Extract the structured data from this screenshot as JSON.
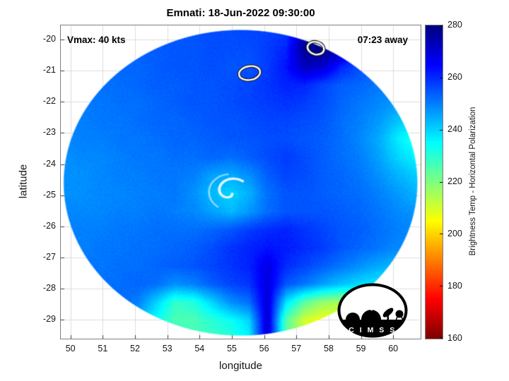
{
  "chart_data": {
    "type": "heatmap",
    "title": "Emnati: 18-Jun-2022 09:30:00",
    "xlabel": "longitude",
    "ylabel": "latitude",
    "xlim": [
      49.7,
      60.85
    ],
    "ylim": [
      -29.6,
      -19.55
    ],
    "xticks": [
      50,
      51,
      52,
      53,
      54,
      55,
      56,
      57,
      58,
      59,
      60
    ],
    "yticks": [
      -20,
      -21,
      -22,
      -23,
      -24,
      -25,
      -26,
      -27,
      -28,
      -29
    ],
    "grid": true,
    "annotations": {
      "vmax": "Vmax: 40 kts",
      "eta": "07:23 away"
    },
    "colorbar": {
      "label": "Brightness Temp - Horizontal Polarization",
      "min": 160,
      "max": 280,
      "ticks": [
        160,
        180,
        200,
        220,
        240,
        260,
        280
      ],
      "colormap": "jet"
    },
    "disk": {
      "center_lon": 55.27,
      "center_lat": -24.6,
      "rx": 5.5,
      "ry": 4.92
    },
    "swirl": {
      "lon": 54.95,
      "lat": -24.9
    },
    "contours": [
      {
        "lon": 55.55,
        "lat": -21.08,
        "rx": 0.33,
        "ry": 0.22,
        "rot": -10
      },
      {
        "lon": 57.6,
        "lat": -20.28,
        "rx": 0.26,
        "ry": 0.2,
        "rot": 15
      }
    ],
    "grid_values": {
      "extent": [
        49.8,
        60.7,
        -19.7,
        -29.6
      ],
      "values": [
        [
          252,
          252,
          252,
          253,
          253,
          254,
          254,
          255,
          256,
          256,
          257,
          257,
          258,
          274,
          279,
          277,
          262,
          256,
          254,
          253
        ],
        [
          252,
          252,
          253,
          253,
          254,
          254,
          255,
          255,
          256,
          256,
          256,
          258,
          261,
          278,
          280,
          275,
          259,
          255,
          253,
          252
        ],
        [
          251,
          252,
          252,
          253,
          253,
          254,
          255,
          255,
          256,
          255,
          255,
          258,
          263,
          273,
          271,
          261,
          256,
          253,
          252,
          251
        ],
        [
          251,
          251,
          252,
          252,
          253,
          254,
          254,
          255,
          255,
          256,
          257,
          259,
          261,
          261,
          257,
          254,
          253,
          251,
          250,
          249
        ],
        [
          250,
          251,
          251,
          252,
          252,
          253,
          254,
          255,
          255,
          256,
          257,
          258,
          259,
          258,
          256,
          253,
          251,
          249,
          247,
          245
        ],
        [
          250,
          250,
          251,
          251,
          252,
          253,
          253,
          254,
          255,
          255,
          256,
          257,
          257,
          256,
          255,
          252,
          250,
          247,
          242,
          239
        ],
        [
          249,
          250,
          250,
          251,
          251,
          252,
          253,
          253,
          254,
          255,
          255,
          256,
          256,
          255,
          254,
          252,
          249,
          245,
          237,
          232
        ],
        [
          248,
          249,
          249,
          250,
          251,
          251,
          252,
          252,
          253,
          252,
          254,
          256,
          258,
          256,
          254,
          252,
          250,
          246,
          240,
          236
        ],
        [
          248,
          248,
          249,
          250,
          250,
          251,
          251,
          250,
          246,
          245,
          248,
          254,
          257,
          256,
          254,
          253,
          251,
          248,
          244,
          241
        ],
        [
          248,
          248,
          249,
          249,
          250,
          250,
          251,
          248,
          243,
          240,
          244,
          252,
          255,
          255,
          254,
          253,
          252,
          250,
          247,
          244
        ],
        [
          249,
          249,
          249,
          250,
          250,
          251,
          250,
          249,
          246,
          243,
          247,
          252,
          255,
          255,
          255,
          254,
          253,
          251,
          249,
          247
        ],
        [
          250,
          250,
          250,
          251,
          251,
          252,
          252,
          252,
          253,
          255,
          258,
          260,
          261,
          259,
          257,
          255,
          254,
          252,
          250,
          249
        ],
        [
          250,
          250,
          251,
          251,
          252,
          252,
          253,
          254,
          256,
          259,
          261,
          263,
          262,
          260,
          258,
          255,
          253,
          251,
          249,
          248
        ],
        [
          251,
          251,
          251,
          252,
          252,
          253,
          254,
          255,
          257,
          259,
          261,
          268,
          260,
          257,
          254,
          251,
          248,
          245,
          243,
          241
        ],
        [
          251,
          251,
          252,
          252,
          253,
          252,
          248,
          250,
          254,
          257,
          259,
          269,
          255,
          251,
          246,
          242,
          239,
          237,
          236,
          238
        ],
        [
          252,
          252,
          252,
          253,
          250,
          240,
          229,
          231,
          240,
          248,
          252,
          270,
          238,
          224,
          217,
          215,
          221,
          227,
          233,
          240
        ],
        [
          252,
          252,
          253,
          250,
          244,
          234,
          226,
          226,
          230,
          234,
          240,
          271,
          225,
          210,
          206,
          208,
          214,
          220,
          229,
          237
        ],
        [
          253,
          253,
          253,
          252,
          248,
          240,
          232,
          228,
          228,
          230,
          236,
          272,
          224,
          212,
          208,
          210,
          216,
          224,
          232,
          240
        ]
      ]
    },
    "logo_text": "C I M S S"
  }
}
